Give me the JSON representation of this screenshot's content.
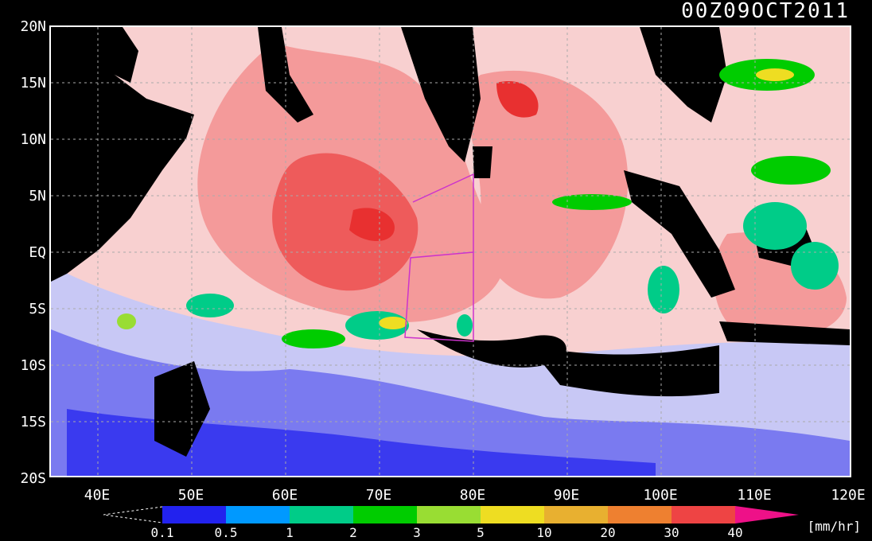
{
  "timestamp": "00Z09OCT2011",
  "axes": {
    "lat_labels": [
      "20N",
      "15N",
      "10N",
      "5N",
      "EQ",
      "5S",
      "10S",
      "15S",
      "20S"
    ],
    "lon_labels": [
      "40E",
      "50E",
      "60E",
      "70E",
      "80E",
      "90E",
      "100E",
      "110E",
      "120E"
    ]
  },
  "colorbar": {
    "ticks": [
      "0.1",
      "0.5",
      "1",
      "2",
      "3",
      "5",
      "10",
      "20",
      "30",
      "40"
    ],
    "colors": [
      "#2222ee",
      "#0099ff",
      "#00cc88",
      "#00cc00",
      "#99dd33",
      "#eedd22",
      "#e8b030",
      "#ee8030",
      "#ee4444",
      "#ee1188"
    ],
    "units": "[mm/hr]"
  },
  "legend_colors": {
    "land": "#000000",
    "very_low": "#3a3aef",
    "low": "#7a7af0",
    "light": "#c8c8f5",
    "pale_red": "#f8d0d0",
    "mid_red": "#f49a9a",
    "red": "#ee5b5b",
    "deep_red": "#e83030"
  }
}
